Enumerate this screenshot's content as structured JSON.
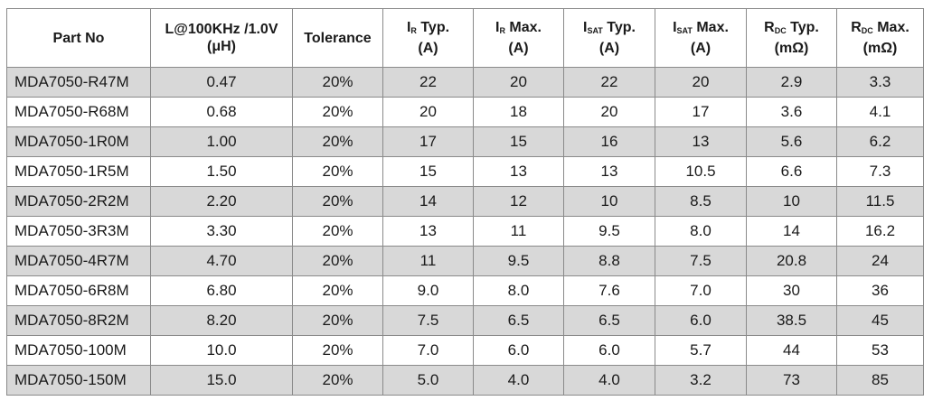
{
  "table": {
    "headers": {
      "part_no": "Part No",
      "inductance": {
        "line1": "L@100KHz /1.0V",
        "line2": "(μH)"
      },
      "tolerance": "Tolerance",
      "ir_typ": {
        "main": "I",
        "sub": "R",
        "suffix": " Typ.",
        "unit": "(A)"
      },
      "ir_max": {
        "main": "I",
        "sub": "R",
        "suffix": " Max.",
        "unit": "(A)"
      },
      "isat_typ": {
        "main": "I",
        "sub": "SAT",
        "suffix": " Typ.",
        "unit": "(A)"
      },
      "isat_max": {
        "main": "I",
        "sub": "SAT",
        "suffix": " Max.",
        "unit": "(A)"
      },
      "rdc_typ": {
        "main": "R",
        "sub": "DC",
        "suffix": " Typ.",
        "unit": "(mΩ)"
      },
      "rdc_max": {
        "main": "R",
        "sub": "DC",
        "suffix": " Max.",
        "unit": "(mΩ)"
      }
    },
    "rows": [
      [
        "MDA7050-R47M",
        "0.47",
        "20%",
        "22",
        "20",
        "22",
        "20",
        "2.9",
        "3.3"
      ],
      [
        "MDA7050-R68M",
        "0.68",
        "20%",
        "20",
        "18",
        "20",
        "17",
        "3.6",
        "4.1"
      ],
      [
        "MDA7050-1R0M",
        "1.00",
        "20%",
        "17",
        "15",
        "16",
        "13",
        "5.6",
        "6.2"
      ],
      [
        "MDA7050-1R5M",
        "1.50",
        "20%",
        "15",
        "13",
        "13",
        "10.5",
        "6.6",
        "7.3"
      ],
      [
        "MDA7050-2R2M",
        "2.20",
        "20%",
        "14",
        "12",
        "10",
        "8.5",
        "10",
        "11.5"
      ],
      [
        "MDA7050-3R3M",
        "3.30",
        "20%",
        "13",
        "11",
        "9.5",
        "8.0",
        "14",
        "16.2"
      ],
      [
        "MDA7050-4R7M",
        "4.70",
        "20%",
        "11",
        "9.5",
        "8.8",
        "7.5",
        "20.8",
        "24"
      ],
      [
        "MDA7050-6R8M",
        "6.80",
        "20%",
        "9.0",
        "8.0",
        "7.6",
        "7.0",
        "30",
        "36"
      ],
      [
        "MDA7050-8R2M",
        "8.20",
        "20%",
        "7.5",
        "6.5",
        "6.5",
        "6.0",
        "38.5",
        "45"
      ],
      [
        "MDA7050-100M",
        "10.0",
        "20%",
        "7.0",
        "6.0",
        "6.0",
        "5.7",
        "44",
        "53"
      ],
      [
        "MDA7050-150M",
        "15.0",
        "20%",
        "5.0",
        "4.0",
        "4.0",
        "3.2",
        "73",
        "85"
      ]
    ],
    "colors": {
      "shade": "#d8d8d8",
      "border": "#8a8a8a",
      "text": "#1a1a1a"
    }
  }
}
